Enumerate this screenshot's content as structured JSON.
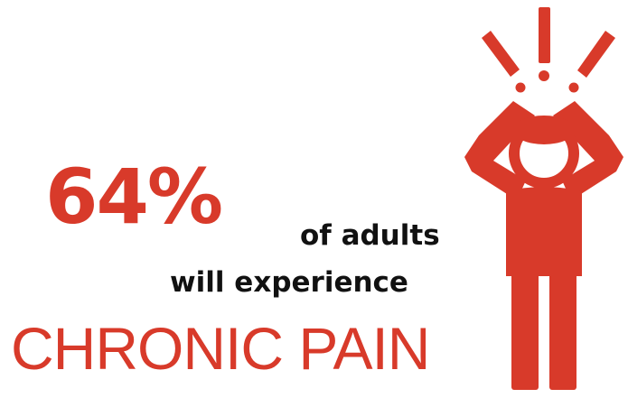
{
  "stat": {
    "percent": "64%",
    "line1": "of adults",
    "line2": "will experience",
    "headline": "CHRONIC PAIN"
  },
  "colors": {
    "accent": "#d83a2a",
    "text": "#111111",
    "background": "#ffffff"
  },
  "figure": {
    "icon": "person-in-pain-icon"
  }
}
